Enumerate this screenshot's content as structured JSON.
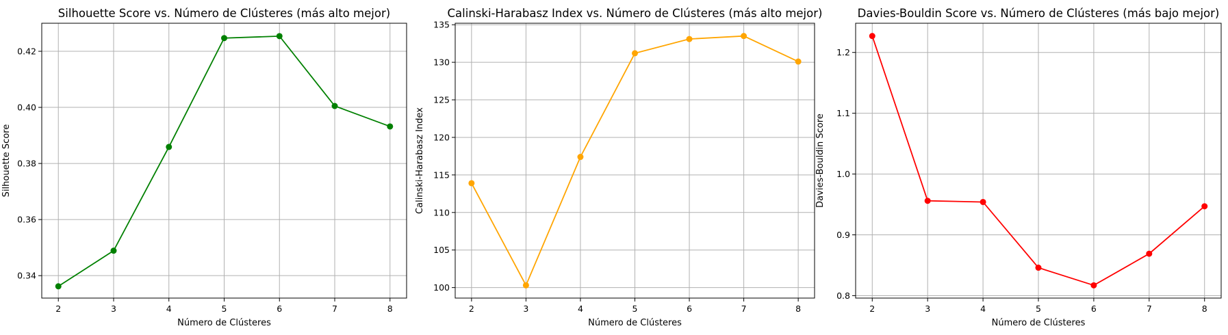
{
  "chart_data": [
    {
      "type": "line",
      "title": "Silhouette Score vs. Número de Clústeres (más alto mejor)",
      "xlabel": "Número de Clústeres",
      "ylabel": "Silhouette Score",
      "x": [
        2,
        3,
        4,
        5,
        6,
        7,
        8
      ],
      "series": [
        {
          "values": [
            0.3362,
            0.3489,
            0.3859,
            0.4247,
            0.4254,
            0.4005,
            0.3932
          ],
          "color": "#008000"
        }
      ],
      "xlim": [
        1.7,
        8.3
      ],
      "ylim": [
        0.332,
        0.43
      ],
      "xticks": [
        "2",
        "3",
        "4",
        "5",
        "6",
        "7",
        "8"
      ],
      "yticks": [
        0.34,
        0.36,
        0.38,
        0.4,
        0.42
      ],
      "ytick_labels": [
        "0.34",
        "0.36",
        "0.38",
        "0.40",
        "0.42"
      ],
      "grid": true
    },
    {
      "type": "line",
      "title": "Calinski-Harabasz Index vs. Número de Clústeres (más alto mejor)",
      "xlabel": "Número de Clústeres",
      "ylabel": "Calinski-Harabasz Index",
      "x": [
        2,
        3,
        4,
        5,
        6,
        7,
        8
      ],
      "series": [
        {
          "values": [
            113.9,
            100.3,
            117.4,
            131.2,
            133.1,
            133.5,
            130.1
          ],
          "color": "#ffa500"
        }
      ],
      "xlim": [
        1.7,
        8.3
      ],
      "ylim": [
        98.6,
        135.2
      ],
      "xticks": [
        "2",
        "3",
        "4",
        "5",
        "6",
        "7",
        "8"
      ],
      "yticks": [
        100,
        105,
        110,
        115,
        120,
        125,
        130,
        135
      ],
      "ytick_labels": [
        "100",
        "105",
        "110",
        "115",
        "120",
        "125",
        "130",
        "135"
      ],
      "grid": true
    },
    {
      "type": "line",
      "title": "Davies-Bouldin Score vs. Número de Clústeres (más bajo mejor)",
      "xlabel": "Número de Clústeres",
      "ylabel": "Davies-Bouldin Score",
      "x": [
        2,
        3,
        4,
        5,
        6,
        7,
        8
      ],
      "series": [
        {
          "values": [
            1.227,
            0.956,
            0.954,
            0.846,
            0.817,
            0.869,
            0.947
          ],
          "color": "#ff0000"
        }
      ],
      "xlim": [
        1.7,
        8.3
      ],
      "ylim": [
        0.796,
        1.248
      ],
      "xticks": [
        "2",
        "3",
        "4",
        "5",
        "6",
        "7",
        "8"
      ],
      "yticks": [
        0.8,
        0.9,
        1.0,
        1.1,
        1.2
      ],
      "ytick_labels": [
        "0.8",
        "0.9",
        "1.0",
        "1.1",
        "1.2"
      ],
      "grid": true
    }
  ]
}
